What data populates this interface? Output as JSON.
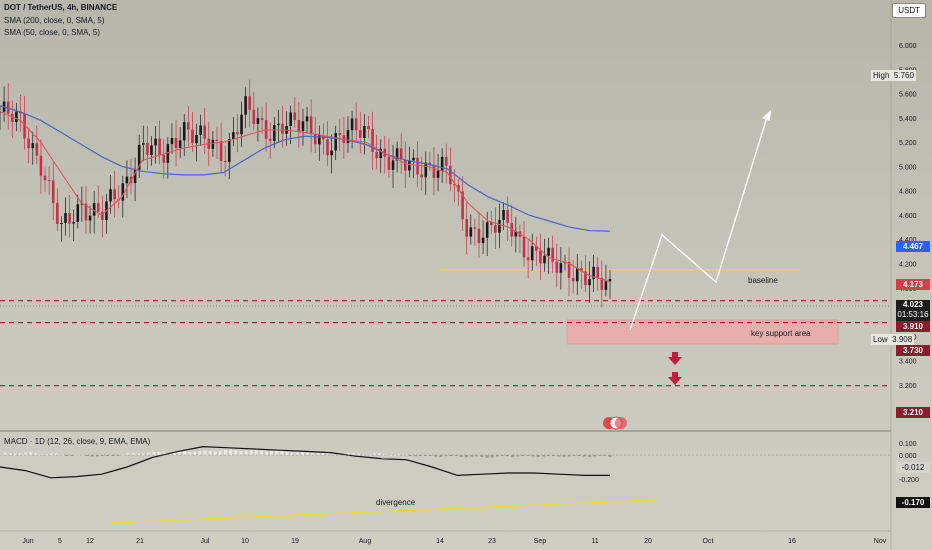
{
  "header": {
    "title": "DOT / TetherUS, 4h, BINANCE",
    "sma200": "SMA (200, close, 0, SMA, 5)",
    "sma50": "SMA (50, close, 0, SMA, 5)",
    "macd": "MACD · 1D (12, 26, close, 9, EMA, EMA)",
    "currency": "USDT"
  },
  "price_axis": {
    "ticks": [
      "6.000",
      "5.800",
      "5.600",
      "5.400",
      "5.200",
      "5.000",
      "4.800",
      "4.600",
      "4.400",
      "4.200",
      "4.000",
      "3.800",
      "3.600",
      "3.400",
      "3.200"
    ]
  },
  "macd_axis": {
    "ticks": [
      "0.100",
      "0.000",
      "-0.100",
      "-0.200"
    ]
  },
  "time_axis": {
    "ticks": [
      "Jun",
      "5",
      "12",
      "21",
      "Jul",
      "10",
      "19",
      "Aug",
      "14",
      "23",
      "Sep",
      "11",
      "20",
      "Oct",
      "16",
      "Nov"
    ]
  },
  "badges": {
    "high_label": "High",
    "high_value": "5.760",
    "low_label": "Low",
    "low_value": "3.908",
    "sma200_value": "4.467",
    "baseline_value": "4.173",
    "last_price": "4.023",
    "countdown": "01:53:16",
    "support1": "3.910",
    "support2": "3.730",
    "support3": "3.210",
    "macd_hist": "-0.012",
    "macd_line": "-0.170"
  },
  "annotations": {
    "baseline": "baseline",
    "key_support": "key support area",
    "divergence": "divergence"
  },
  "colors": {
    "candle_up": "#1a1a1a",
    "candle_down": "#c2334a",
    "sma200": "#4a67c9",
    "sma50": "#e0545a",
    "baseline": "#f0d834",
    "support": "#a01830",
    "macd_line": "#111111"
  },
  "chart_data": {
    "type": "line",
    "title": "DOT / TetherUS, 4h, BINANCE",
    "y_scale": "price",
    "ylim": [
      3.1,
      6.1
    ],
    "x": [
      "Jun 1",
      "Jun 5",
      "Jun 8",
      "Jun 12",
      "Jun 15",
      "Jun 18",
      "Jun 21",
      "Jun 25",
      "Jun 28",
      "Jul 1",
      "Jul 5",
      "Jul 8",
      "Jul 10",
      "Jul 13",
      "Jul 16",
      "Jul 19",
      "Jul 22",
      "Jul 26",
      "Jul 29",
      "Aug 1",
      "Aug 5",
      "Aug 9",
      "Aug 14",
      "Aug 18",
      "Aug 23",
      "Aug 27",
      "Aug 30",
      "Sep 2",
      "Sep 6",
      "Sep 9",
      "Sep 11"
    ],
    "series": [
      {
        "name": "DOT / TetherUS",
        "values": [
          5.45,
          5.35,
          5.05,
          4.45,
          4.7,
          4.6,
          4.8,
          5.2,
          5.05,
          5.35,
          5.2,
          5.1,
          5.5,
          5.25,
          5.4,
          5.3,
          5.2,
          5.25,
          5.3,
          5.05,
          5.0,
          5.02,
          4.95,
          4.5,
          4.45,
          4.55,
          4.3,
          4.2,
          4.18,
          4.05,
          4.02
        ]
      },
      {
        "name": "SMA (200, close, 0, SMA, 5)",
        "values": [
          5.5,
          5.45,
          5.38,
          5.28,
          5.18,
          5.08,
          5.0,
          4.96,
          4.94,
          4.93,
          4.93,
          4.95,
          5.05,
          5.15,
          5.22,
          5.25,
          5.24,
          5.22,
          5.18,
          5.1,
          5.05,
          5.02,
          4.98,
          4.85,
          4.75,
          4.68,
          4.6,
          4.55,
          4.5,
          4.47,
          4.467
        ]
      },
      {
        "name": "SMA (50, close, 0, SMA, 5)",
        "values": [
          5.45,
          5.38,
          5.2,
          4.95,
          4.7,
          4.6,
          4.75,
          5.05,
          5.1,
          5.15,
          5.18,
          5.2,
          5.25,
          5.3,
          5.3,
          5.28,
          5.25,
          5.22,
          5.2,
          5.1,
          5.02,
          5.0,
          4.95,
          4.7,
          4.55,
          4.5,
          4.4,
          4.25,
          4.2,
          4.1,
          4.05
        ]
      }
    ],
    "levels": [
      {
        "name": "baseline",
        "value": 4.173
      },
      {
        "name": "support",
        "value": 3.91
      },
      {
        "name": "support",
        "value": 3.73
      },
      {
        "name": "support",
        "value": 3.21
      }
    ],
    "zone": {
      "name": "key support area",
      "from": 3.73,
      "to": 3.91
    },
    "projection": {
      "points": [
        3.85,
        4.45,
        4.17,
        5.48
      ]
    },
    "macd": {
      "ylim": [
        -0.22,
        0.12
      ],
      "line": [
        -0.1,
        -0.13,
        -0.19,
        -0.18,
        -0.16,
        -0.1,
        -0.02,
        0.03,
        0.07,
        0.06,
        0.05,
        0.04,
        0.03,
        0.02,
        -0.01,
        -0.03,
        -0.04,
        -0.1,
        -0.17,
        -0.16,
        -0.15,
        -0.15,
        -0.16,
        -0.17,
        -0.17
      ],
      "histogram": [
        0.01,
        0.02,
        0.01,
        0.0,
        -0.01,
        0.01,
        0.02,
        0.03,
        0.03,
        0.04,
        0.04,
        0.03,
        0.02,
        0.02,
        0.01,
        0.01,
        0.0,
        -0.01,
        -0.01,
        -0.02,
        -0.01,
        -0.01,
        -0.01,
        -0.01,
        -0.012
      ]
    }
  }
}
